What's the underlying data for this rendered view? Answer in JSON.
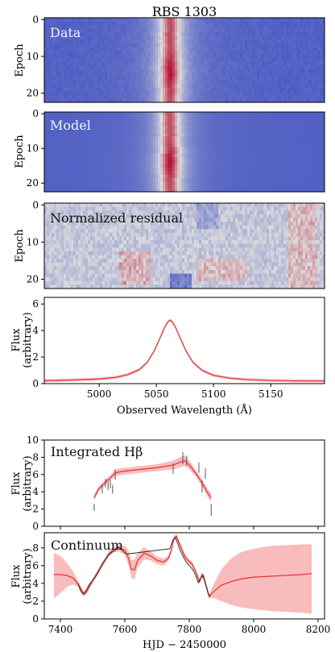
{
  "title": "RBS 1303",
  "colors": {
    "map_low": "#3b4cc0",
    "map_mid": "#dddddd",
    "map_high": "#b40426",
    "line": "#e03030",
    "band": "#f7b0b0",
    "errorbar": "#555555",
    "black_line": "#222222"
  },
  "chart_data": [
    {
      "type": "heatmap",
      "panel": "data",
      "label": "Data",
      "ylabel": "Epoch",
      "yticks": [
        "0",
        "10",
        "20"
      ],
      "ylim": [
        22.5,
        -0.5
      ],
      "xlim": [
        4952,
        5197
      ],
      "line_center": 5062,
      "epochs": 23,
      "description": "emission line profile per epoch, peak strongest near epoch 14"
    },
    {
      "type": "heatmap",
      "panel": "model",
      "label": "Model",
      "ylabel": "Epoch",
      "yticks": [
        "0",
        "10",
        "20"
      ],
      "ylim": [
        22.5,
        -0.5
      ],
      "xlim": [
        4952,
        5197
      ],
      "line_center": 5062,
      "epochs": 23
    },
    {
      "type": "heatmap",
      "panel": "residual",
      "label": "Normalized residual",
      "ylabel": "Epoch",
      "yticks": [
        "0",
        "10",
        "20"
      ],
      "ylim": [
        22.5,
        -0.5
      ],
      "xlim": [
        4952,
        5197
      ],
      "epochs": 23
    },
    {
      "type": "line",
      "panel": "spectrum",
      "ylabel": "Flux\n(arbitrary)",
      "xlabel": "Observed Wavelength (Å)",
      "xlim": [
        4952,
        5197
      ],
      "ylim": [
        0,
        6.5
      ],
      "xticks": [
        5000,
        5050,
        5100,
        5150
      ],
      "yticks": [
        0,
        2,
        4,
        6
      ],
      "series": [
        {
          "x": [
            4952,
            4980,
            5000,
            5015,
            5025,
            5035,
            5042,
            5048,
            5053,
            5057,
            5060,
            5062,
            5064,
            5067,
            5071,
            5076,
            5082,
            5090,
            5100,
            5115,
            5130,
            5150,
            5170,
            5197
          ],
          "y": [
            0.22,
            0.28,
            0.35,
            0.48,
            0.68,
            1.05,
            1.6,
            2.45,
            3.4,
            4.2,
            4.65,
            4.78,
            4.65,
            4.2,
            3.4,
            2.45,
            1.6,
            1.0,
            0.62,
            0.4,
            0.3,
            0.24,
            0.21,
            0.2
          ]
        }
      ]
    },
    {
      "type": "line",
      "panel": "hbeta",
      "label": "Integrated Hβ",
      "ylabel": "Flux\n(arbitrary)",
      "xlim": [
        7350,
        8220
      ],
      "ylim": [
        0,
        10
      ],
      "yticks": [
        0,
        2,
        4,
        6,
        8,
        10
      ],
      "series": [
        {
          "name": "model",
          "x": [
            7505,
            7515,
            7525,
            7535,
            7545,
            7555,
            7570,
            7600,
            7650,
            7700,
            7750,
            7770,
            7785,
            7795,
            7805,
            7815,
            7825,
            7835,
            7845,
            7855,
            7868
          ],
          "y": [
            3.3,
            4.1,
            4.6,
            4.9,
            5.3,
            5.6,
            6.2,
            6.4,
            6.6,
            6.8,
            7.1,
            7.4,
            7.6,
            7.3,
            6.9,
            6.4,
            5.9,
            5.3,
            4.7,
            4.0,
            3.3
          ],
          "lo": [
            3.0,
            3.8,
            4.3,
            4.6,
            5.0,
            5.3,
            5.8,
            6.0,
            6.2,
            6.4,
            6.6,
            6.8,
            7.0,
            6.8,
            6.4,
            6.0,
            5.5,
            4.9,
            4.3,
            3.5,
            2.8
          ],
          "hi": [
            3.6,
            4.4,
            4.9,
            5.2,
            5.6,
            5.9,
            6.6,
            6.8,
            7.0,
            7.2,
            7.6,
            8.0,
            8.2,
            7.8,
            7.4,
            6.8,
            6.3,
            5.7,
            5.1,
            4.5,
            3.8
          ]
        },
        {
          "name": "measurements",
          "x": [
            7505,
            7530,
            7540,
            7548,
            7555,
            7562,
            7570,
            7750,
            7780,
            7792,
            7830,
            7840,
            7850,
            7868
          ],
          "y": [
            2.2,
            4.3,
            5.0,
            4.7,
            4.9,
            4.3,
            6.0,
            6.7,
            7.9,
            7.6,
            6.8,
            4.6,
            6.1,
            1.9
          ],
          "err": [
            0.4,
            0.5,
            0.5,
            0.5,
            0.5,
            0.5,
            0.6,
            0.6,
            0.7,
            0.6,
            0.6,
            0.7,
            0.6,
            0.7
          ]
        }
      ]
    },
    {
      "type": "line",
      "panel": "continuum",
      "label": "Continuum",
      "ylabel": "Flux\n(arbitrary)",
      "xlabel": "HJD − 2450000",
      "xlim": [
        7350,
        8220
      ],
      "ylim": [
        0,
        9.7
      ],
      "xticks": [
        7400,
        7600,
        7800,
        8000,
        8200
      ],
      "yticks": [
        0,
        2,
        4,
        6,
        8
      ],
      "series": [
        {
          "name": "model",
          "x": [
            7380,
            7400,
            7420,
            7440,
            7455,
            7465,
            7472,
            7480,
            7492,
            7505,
            7520,
            7535,
            7550,
            7565,
            7580,
            7600,
            7612,
            7620,
            7630,
            7640,
            7660,
            7680,
            7700,
            7720,
            7735,
            7745,
            7752,
            7760,
            7768,
            7776,
            7784,
            7795,
            7808,
            7818,
            7826,
            7832,
            7840,
            7848,
            7856,
            7862,
            7868,
            7880,
            7900,
            7930,
            7960,
            8000,
            8050,
            8100,
            8150,
            8180
          ],
          "y": [
            5.0,
            5.0,
            4.9,
            4.6,
            3.9,
            3.3,
            2.8,
            3.0,
            3.8,
            4.6,
            5.5,
            6.4,
            7.3,
            7.8,
            8.0,
            7.7,
            6.8,
            5.6,
            5.5,
            6.6,
            7.4,
            7.1,
            6.6,
            6.4,
            6.8,
            7.8,
            9.0,
            9.3,
            8.6,
            7.9,
            7.2,
            6.6,
            6.2,
            5.5,
            4.8,
            4.2,
            5.0,
            4.3,
            3.3,
            2.5,
            2.8,
            3.2,
            3.8,
            4.2,
            4.5,
            4.7,
            4.8,
            4.9,
            5.0,
            5.1
          ],
          "lo": [
            2.3,
            2.9,
            3.6,
            3.9,
            3.6,
            3.0,
            2.5,
            2.7,
            3.5,
            4.3,
            5.2,
            6.1,
            7.0,
            7.5,
            7.6,
            7.2,
            6.0,
            4.7,
            4.4,
            5.8,
            6.7,
            6.6,
            6.2,
            6.0,
            6.5,
            7.5,
            8.7,
            9.0,
            8.3,
            7.6,
            6.9,
            6.3,
            5.9,
            5.2,
            4.5,
            3.9,
            4.7,
            4.0,
            3.0,
            2.3,
            2.4,
            2.3,
            2.0,
            1.6,
            1.3,
            1.1,
            0.9,
            0.8,
            0.7,
            0.6
          ],
          "hi": [
            7.4,
            7.1,
            6.3,
            5.3,
            4.3,
            3.6,
            3.1,
            3.3,
            4.1,
            4.9,
            5.8,
            6.7,
            7.6,
            8.1,
            8.4,
            8.2,
            7.7,
            6.6,
            6.7,
            7.4,
            8.1,
            7.6,
            7.0,
            6.8,
            7.1,
            8.1,
            9.3,
            9.6,
            8.9,
            8.2,
            7.5,
            6.9,
            6.5,
            5.8,
            5.1,
            4.5,
            5.3,
            4.6,
            3.6,
            2.8,
            3.3,
            4.2,
            5.6,
            6.8,
            7.5,
            7.9,
            8.2,
            8.3,
            8.4,
            8.4
          ]
        },
        {
          "name": "observed",
          "x": [
            7455,
            7462,
            7470,
            7478,
            7490,
            7500,
            7510,
            7520,
            7530,
            7540,
            7550,
            7560,
            7570,
            7580,
            7590,
            7598,
            7606,
            7740,
            7748,
            7756,
            7764,
            7772,
            7780,
            7790,
            7800,
            7810,
            7820,
            7828,
            7836,
            7844,
            7852,
            7860,
            7866
          ],
          "y": [
            4.0,
            3.2,
            2.8,
            3.1,
            3.9,
            4.3,
            4.8,
            5.4,
            6.2,
            6.7,
            7.2,
            7.5,
            7.7,
            8.1,
            7.8,
            7.5,
            7.3,
            7.9,
            8.8,
            9.2,
            8.5,
            7.7,
            7.1,
            6.4,
            6.0,
            5.6,
            4.9,
            4.1,
            4.6,
            4.9,
            3.7,
            2.7,
            2.6
          ]
        }
      ]
    }
  ]
}
